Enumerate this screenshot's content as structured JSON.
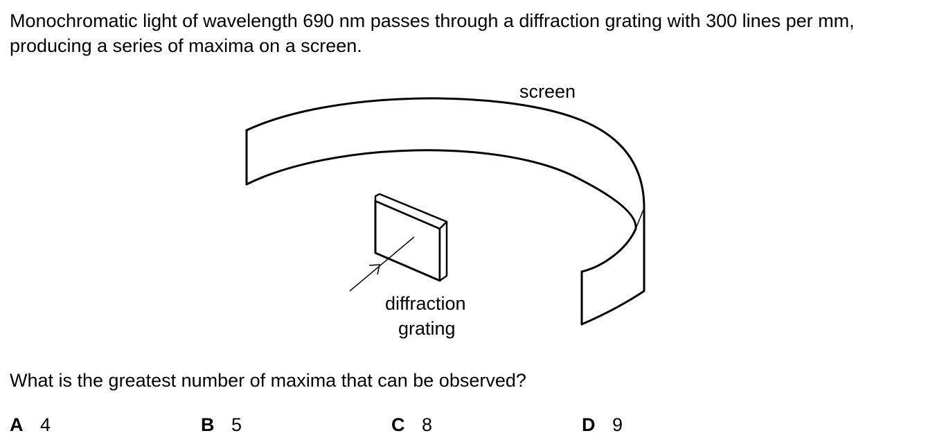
{
  "question": {
    "intro": "Monochromatic light of wavelength 690 nm passes through a diffraction grating with 300 lines per mm, producing a series of maxima on a screen.",
    "prompt": "What is the greatest number of maxima that can be observed?"
  },
  "diagram": {
    "screen_label": "screen",
    "grating_label_line1": "diffraction",
    "grating_label_line2": "grating"
  },
  "options": [
    {
      "letter": "A",
      "value": "4"
    },
    {
      "letter": "B",
      "value": "5"
    },
    {
      "letter": "C",
      "value": "8"
    },
    {
      "letter": "D",
      "value": "9"
    }
  ]
}
